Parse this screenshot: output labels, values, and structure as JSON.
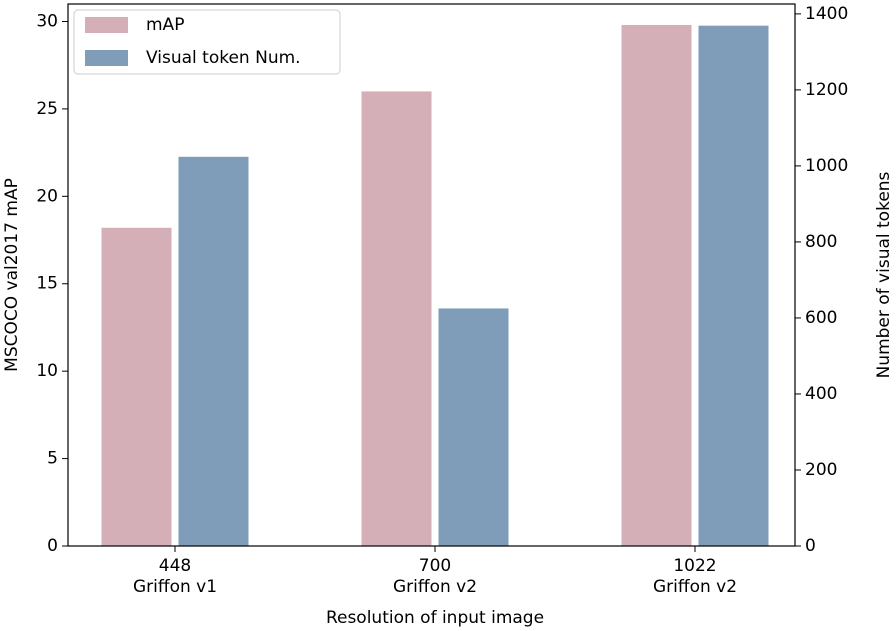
{
  "chart_data": {
    "type": "bar",
    "xlabel": "Resolution of input image",
    "ylabel": "MSCOCO val2017 mAP",
    "y2label": "Number of visual tokens",
    "categories": [
      [
        "448",
        "Griffon v1"
      ],
      [
        "700",
        "Griffon v2"
      ],
      [
        "1022",
        "Griffon v2"
      ]
    ],
    "series": [
      {
        "name": "mAP",
        "color": "#d5afb7",
        "values": [
          18.2,
          26.0,
          29.8
        ]
      },
      {
        "name": "Visual token Num.",
        "color": "#7f9db9",
        "values": [
          1024,
          625,
          1369
        ],
        "axis": "y2"
      }
    ],
    "ylim": [
      0,
      31.0
    ],
    "yticks": [
      0,
      5,
      10,
      15,
      20,
      25,
      30
    ],
    "y2lim": [
      0,
      1426
    ],
    "y2ticks": [
      0,
      200,
      400,
      600,
      800,
      1000,
      1200,
      1400
    ],
    "legend": "upper left"
  }
}
